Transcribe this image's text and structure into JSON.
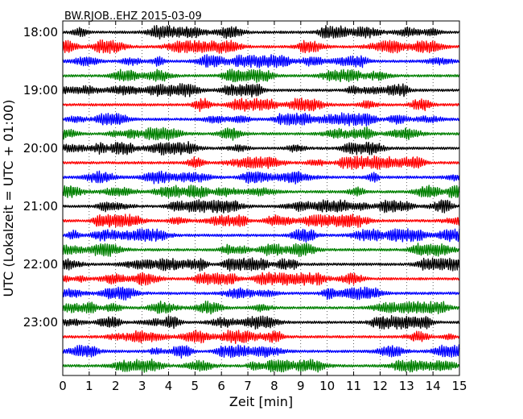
{
  "chart_data": {
    "type": "line",
    "title": "BW.RJOB..EHZ 2015-03-09",
    "xlabel": "Zeit  [min]",
    "ylabel": "UTC (Lokalzeit = UTC + 01:00)",
    "xlim": [
      0,
      15
    ],
    "x_ticks": [
      "0",
      "1",
      "2",
      "3",
      "4",
      "5",
      "6",
      "7",
      "8",
      "9",
      "10",
      "11",
      "12",
      "13",
      "14",
      "15"
    ],
    "y_ticks": [
      "18:00",
      "19:00",
      "20:00",
      "21:00",
      "22:00",
      "23:00"
    ],
    "grid": true,
    "trace_count": 24,
    "trace_colors": [
      "#000000",
      "#ff0000",
      "#0000ff",
      "#008000"
    ]
  }
}
